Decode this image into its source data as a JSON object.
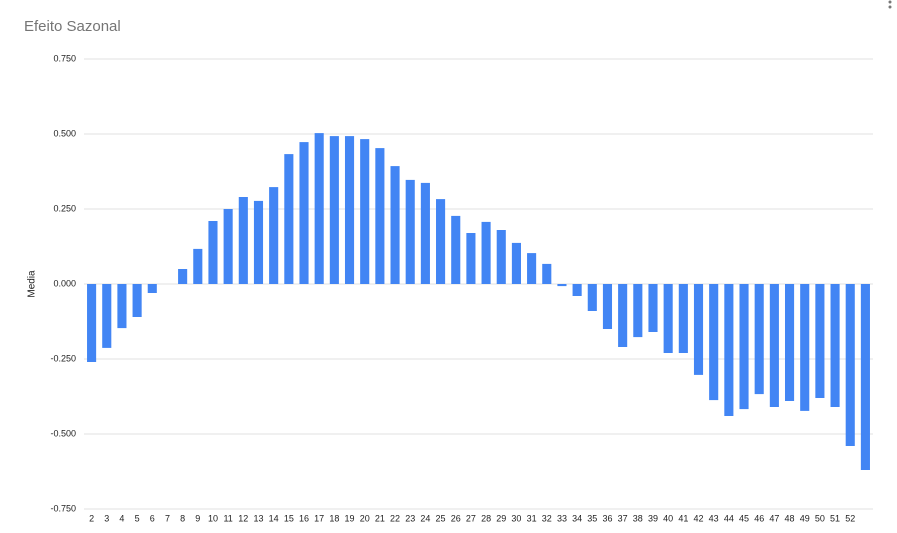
{
  "chart_data": {
    "type": "bar",
    "title": "Efeito Sazonal",
    "y_label": "Media",
    "color": "#4285f4",
    "grid": true,
    "categories": [
      2,
      3,
      4,
      5,
      6,
      7,
      8,
      9,
      10,
      11,
      12,
      13,
      14,
      15,
      16,
      17,
      18,
      19,
      20,
      21,
      22,
      23,
      24,
      25,
      26,
      27,
      28,
      29,
      30,
      31,
      32,
      33,
      34,
      35,
      36,
      37,
      38,
      39,
      40,
      41,
      42,
      43,
      44,
      45,
      46,
      47,
      48,
      49,
      50,
      51,
      52,
      null
    ],
    "values": [
      -0.26,
      -0.213,
      -0.147,
      -0.11,
      -0.03,
      0,
      0.05,
      0.117,
      0.21,
      0.25,
      0.29,
      0.277,
      0.323,
      0.433,
      0.473,
      0.503,
      0.493,
      0.493,
      0.483,
      0.453,
      0.393,
      0.347,
      0.337,
      0.283,
      0.227,
      0.17,
      0.207,
      0.18,
      0.137,
      0.103,
      0.067,
      -0.007,
      -0.04,
      -0.09,
      -0.15,
      -0.21,
      -0.177,
      -0.16,
      -0.23,
      -0.23,
      -0.303,
      -0.387,
      -0.44,
      -0.417,
      -0.367,
      -0.41,
      -0.39,
      -0.423,
      -0.38,
      -0.41,
      -0.54,
      -0.62
    ],
    "ylim": [
      -0.75,
      0.75
    ],
    "yticks": [
      {
        "value": -0.75,
        "label": "-0.750"
      },
      {
        "value": -0.5,
        "label": "-0.500"
      },
      {
        "value": -0.25,
        "label": "-0.250"
      },
      {
        "value": 0,
        "label": "0.000"
      },
      {
        "value": 0.25,
        "label": "0.250"
      },
      {
        "value": 0.5,
        "label": "0.500"
      },
      {
        "value": 0.75,
        "label": "0.750"
      }
    ]
  }
}
